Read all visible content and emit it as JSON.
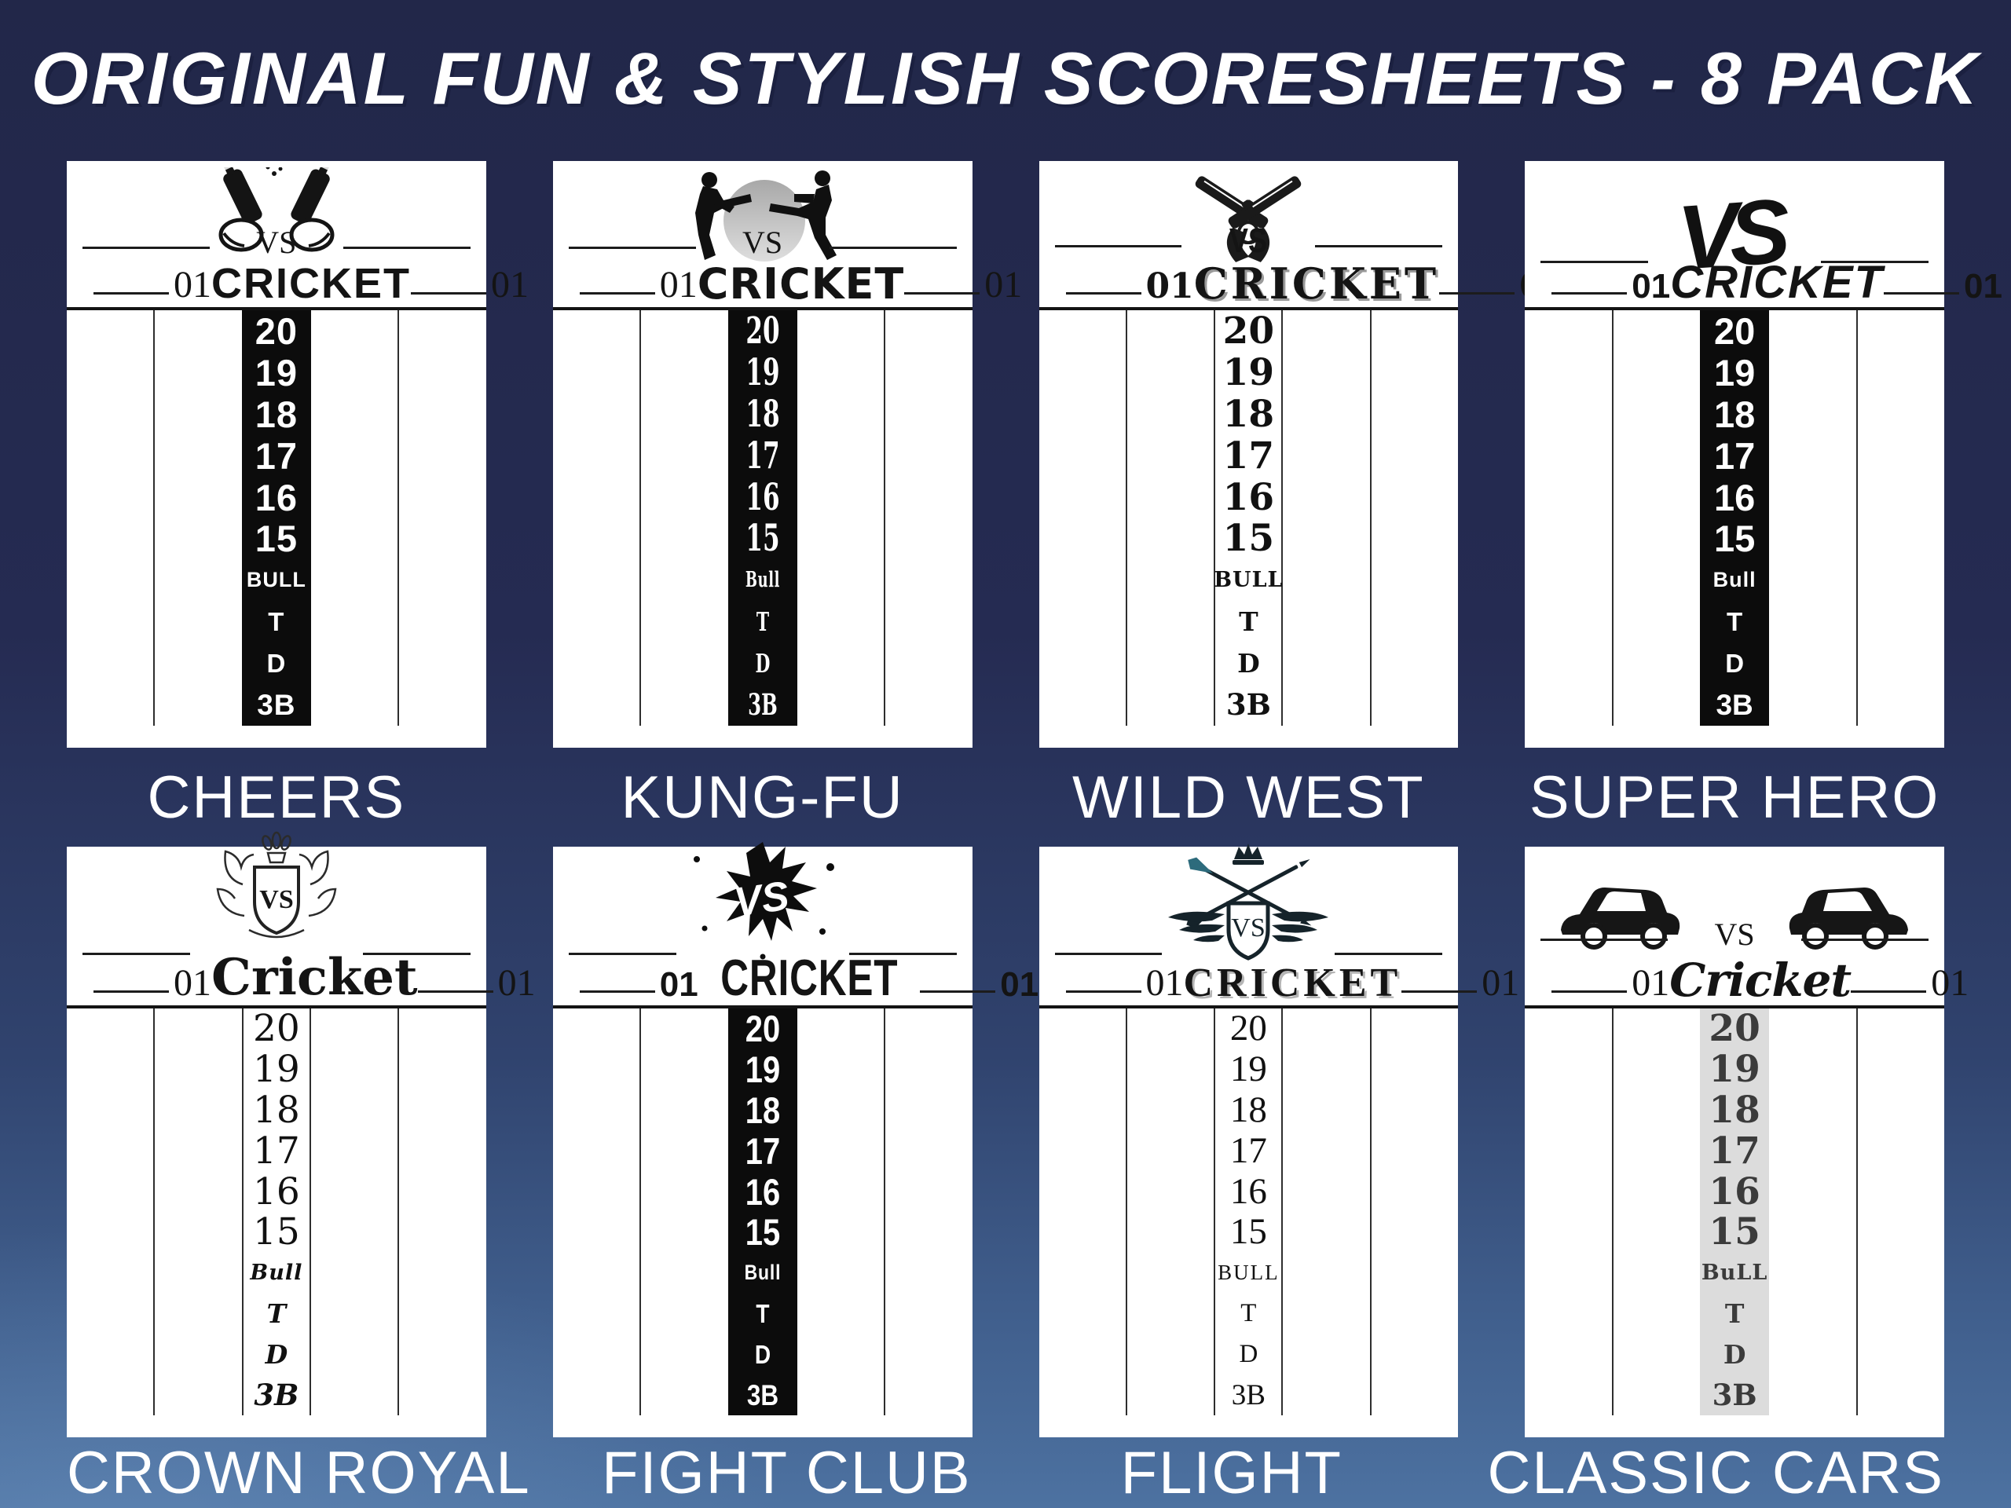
{
  "title": "ORIGINAL FUN & STYLISH SCORESHEETS - 8 PACK",
  "colors": {
    "background_top": "#252b52",
    "background_bottom": "#4d72a1",
    "card": "#ffffff",
    "ink": "#141414",
    "black_column": "#0c0c0c",
    "gray_column": "#dcdcdc",
    "label_text": "#ffffff",
    "dart_flight_teal": "#2d6b7c"
  },
  "cards": [
    {
      "label": "CHEERS",
      "art": "clinking-beer-bottles-icon",
      "vs": "VS",
      "art_text": "",
      "left_score": "01",
      "right_score": "01",
      "title": "CRICKET",
      "column": "black",
      "rows": [
        "20",
        "19",
        "18",
        "17",
        "16",
        "15",
        "BULL",
        "T",
        "D",
        "3B"
      ]
    },
    {
      "label": "KUNG-FU",
      "art": "karate-fighters-icon",
      "vs": "VS",
      "art_text": "",
      "left_score": "01",
      "right_score": "01",
      "title": "CRICKET",
      "column": "black",
      "rows": [
        "20",
        "19",
        "18",
        "17",
        "16",
        "15",
        "Bull",
        "T",
        "D",
        "3B"
      ]
    },
    {
      "label": "WILD WEST",
      "art": "crossed-flintlock-pistols-icon",
      "vs": "VS",
      "art_text": "",
      "left_score": "01",
      "right_score": "01",
      "title": "CRICKET",
      "column": "white",
      "rows": [
        "20",
        "19",
        "18",
        "17",
        "16",
        "15",
        "BULL",
        "T",
        "D",
        "3B"
      ]
    },
    {
      "label": "SUPER HERO",
      "art": "vs-comic-logo-icon",
      "vs": "",
      "art_text": "VS",
      "left_score": "01",
      "right_score": "01",
      "title": "CRICKET",
      "column": "black",
      "rows": [
        "20",
        "19",
        "18",
        "17",
        "16",
        "15",
        "Bull",
        "T",
        "D",
        "3B"
      ]
    },
    {
      "label": "CROWN ROYAL",
      "art": "royal-lion-crest-icon",
      "vs": "",
      "art_text": "VS",
      "left_score": "01",
      "right_score": "01",
      "title": "Cricket",
      "column": "white",
      "rows": [
        "20",
        "19",
        "18",
        "17",
        "16",
        "15",
        "Bull",
        "T",
        "D",
        "3B"
      ]
    },
    {
      "label": "FIGHT CLUB",
      "art": "ink-splatter-vs-icon",
      "vs": "",
      "art_text": "VS",
      "left_score": "01",
      "right_score": "01",
      "title": "CRICKET",
      "column": "black",
      "rows": [
        "20",
        "19",
        "18",
        "17",
        "16",
        "15",
        "Bull",
        "T",
        "D",
        "3B"
      ]
    },
    {
      "label": "FLIGHT",
      "art": "winged-darts-crest-icon",
      "vs": "",
      "art_text": "VS",
      "left_score": "01",
      "right_score": "01",
      "title": "CRICKET",
      "column": "white",
      "rows": [
        "20",
        "19",
        "18",
        "17",
        "16",
        "15",
        "BULL",
        "T",
        "D",
        "3B"
      ]
    },
    {
      "label": "CLASSIC CARS",
      "art": "classic-cars-icon",
      "vs": "VS",
      "art_text": "",
      "left_score": "01",
      "right_score": "01",
      "title": "Cricket",
      "column": "gray",
      "rows": [
        "20",
        "19",
        "18",
        "17",
        "16",
        "15",
        "BuLL",
        "T",
        "D",
        "3B"
      ]
    }
  ]
}
